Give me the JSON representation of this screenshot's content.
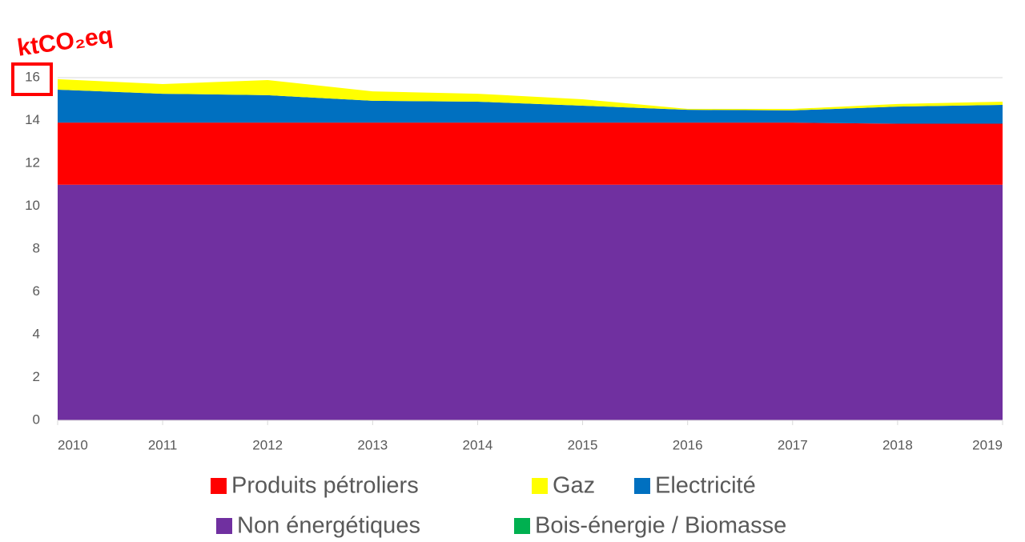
{
  "chart_data": {
    "type": "stacked_area",
    "annotation": "ktCO₂eq",
    "x": [
      2010,
      2011,
      2012,
      2013,
      2014,
      2015,
      2016,
      2017,
      2018,
      2019
    ],
    "xlim": [
      2010,
      2019
    ],
    "xticks": [
      2010,
      2011,
      2012,
      2013,
      2014,
      2015,
      2016,
      2017,
      2018,
      2019
    ],
    "ylim": [
      0,
      16
    ],
    "yticks": [
      0,
      2,
      4,
      6,
      8,
      10,
      12,
      14,
      16
    ],
    "grid": true,
    "series": [
      {
        "name": "Non énergétiques",
        "color": "#7030a0",
        "values": [
          11.0,
          11.0,
          11.0,
          11.0,
          11.0,
          11.0,
          11.0,
          11.0,
          11.0,
          11.0
        ]
      },
      {
        "name": "Produits pétroliers",
        "color": "#ff0000",
        "values": [
          2.9,
          2.9,
          2.9,
          2.9,
          2.9,
          2.9,
          2.9,
          2.9,
          2.85,
          2.85
        ]
      },
      {
        "name": "Electricité",
        "color": "#0070c0",
        "values": [
          1.54,
          1.35,
          1.28,
          1.02,
          0.98,
          0.79,
          0.6,
          0.57,
          0.8,
          0.88
        ]
      },
      {
        "name": "Gaz",
        "color": "#ffff00",
        "values": [
          0.49,
          0.45,
          0.71,
          0.44,
          0.37,
          0.3,
          0.04,
          0.07,
          0.12,
          0.15
        ]
      },
      {
        "name": "Bois-énergie / Biomasse",
        "color": "#00b050",
        "values": [
          0,
          0,
          0,
          0,
          0,
          0,
          0,
          0,
          0,
          0
        ]
      }
    ]
  }
}
